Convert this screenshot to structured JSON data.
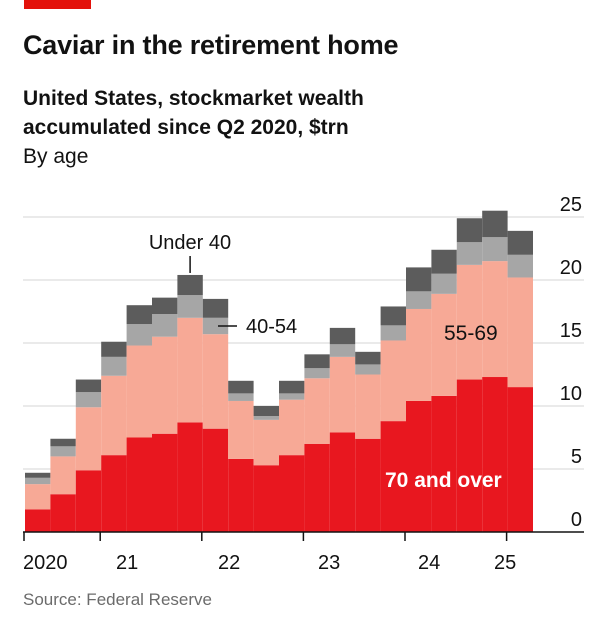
{
  "header": {
    "title": "Caviar in the retirement home",
    "subtitle": "United States, stockmarket wealth accumulated since Q2 2020, $trn",
    "subtitle2": "By age"
  },
  "footer": {
    "source": "Source: Federal Reserve"
  },
  "colors": {
    "accent": "#e3120b",
    "over70": "#e8171f",
    "age55_69": "#f7a996",
    "age40_54": "#a6a6a6",
    "under40": "#5c5c5c",
    "grid": "#d5d5d5",
    "text": "#121212"
  },
  "chart_data": {
    "type": "bar",
    "stacked": true,
    "title": "Caviar in the retirement home",
    "ylabel": "$trn",
    "ylim": [
      0,
      25
    ],
    "yticks": [
      "0",
      "5",
      "10",
      "15",
      "20",
      "25"
    ],
    "yticks_values": [
      0,
      5,
      10,
      15,
      20,
      25
    ],
    "xtick_labels": [
      "2020",
      "21",
      "22",
      "23",
      "24",
      "25"
    ],
    "categories": [
      "2020Q2",
      "2020Q3",
      "2020Q4",
      "2021Q1",
      "2021Q2",
      "2021Q3",
      "2021Q4",
      "2022Q1",
      "2022Q2",
      "2022Q3",
      "2022Q4",
      "2023Q1",
      "2023Q2",
      "2023Q3",
      "2023Q4",
      "2024Q1",
      "2024Q2",
      "2024Q3",
      "2024Q4",
      "2025Q1"
    ],
    "series": [
      {
        "name": "70 and over",
        "values": [
          1.8,
          3.0,
          4.9,
          6.1,
          7.5,
          7.8,
          8.7,
          8.2,
          5.8,
          5.3,
          6.1,
          7.0,
          7.9,
          7.4,
          8.8,
          10.4,
          10.8,
          12.1,
          12.3,
          11.5
        ]
      },
      {
        "name": "55-69",
        "values": [
          2.0,
          3.0,
          5.0,
          6.3,
          7.3,
          7.7,
          8.3,
          7.5,
          4.6,
          3.6,
          4.4,
          5.2,
          6.0,
          5.1,
          6.4,
          7.3,
          8.1,
          9.1,
          9.2,
          8.7
        ]
      },
      {
        "name": "40-54",
        "values": [
          0.5,
          0.8,
          1.2,
          1.5,
          1.7,
          1.8,
          1.8,
          1.3,
          0.6,
          0.3,
          0.5,
          0.8,
          1.0,
          0.8,
          1.2,
          1.4,
          1.6,
          1.8,
          1.9,
          1.8
        ]
      },
      {
        "name": "Under 40",
        "values": [
          0.4,
          0.6,
          1.0,
          1.2,
          1.5,
          1.3,
          1.6,
          1.5,
          1.0,
          0.8,
          1.0,
          1.1,
          1.3,
          1.0,
          1.5,
          1.9,
          1.9,
          1.9,
          2.1,
          1.9
        ]
      }
    ],
    "annotations": [
      {
        "text": "Under 40",
        "series": "Under 40"
      },
      {
        "text": "40-54",
        "series": "40-54"
      },
      {
        "text": "55-69",
        "series": "55-69"
      },
      {
        "text": "70 and over",
        "series": "70 and over"
      }
    ]
  }
}
